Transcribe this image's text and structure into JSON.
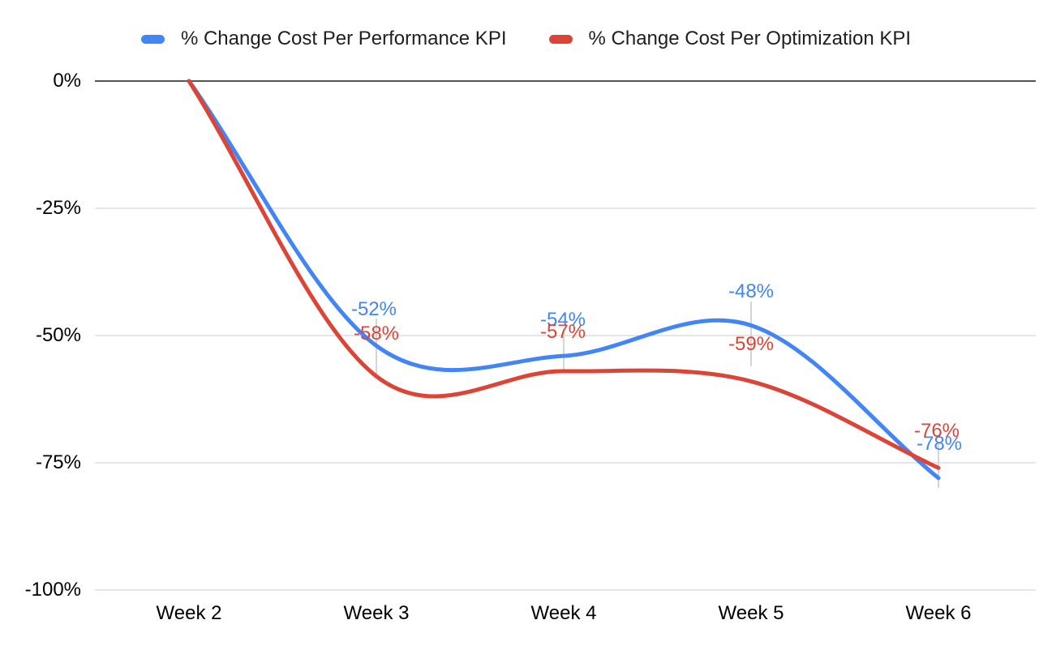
{
  "chart_data": {
    "type": "line",
    "smooth": true,
    "x_categories": [
      "Week 2",
      "Week 3",
      "Week 4",
      "Week 5",
      "Week 6"
    ],
    "y_tick_labels": [
      "0%",
      "-25%",
      "-50%",
      "-75%",
      "-100%"
    ],
    "y_tick_values": [
      0,
      -25,
      -50,
      -75,
      -100
    ],
    "ylim": [
      -100,
      0
    ],
    "grid": "horizontal",
    "legend_position": "top",
    "series": [
      {
        "name": "% Change Cost Per Performance KPI",
        "color": "#4285f4",
        "values": [
          0,
          -52,
          -54,
          -48,
          -78
        ],
        "point_labels": [
          "",
          "-52%",
          "-54%",
          "-48%",
          "-78%"
        ]
      },
      {
        "name": "% Change Cost Per Optimization KPI",
        "color": "#db4437",
        "values": [
          0,
          -58,
          -57,
          -59,
          -76
        ],
        "point_labels": [
          "",
          "-58%",
          "-57%",
          "-59%",
          "-76%"
        ]
      }
    ]
  },
  "colors": {
    "gridline": "#e6e6e6",
    "zero_axis": "#545454",
    "leader_line": "#d5d5d5",
    "axis_text": "#000000",
    "legend_text": "#1f1f1f",
    "background": "#ffffff"
  }
}
